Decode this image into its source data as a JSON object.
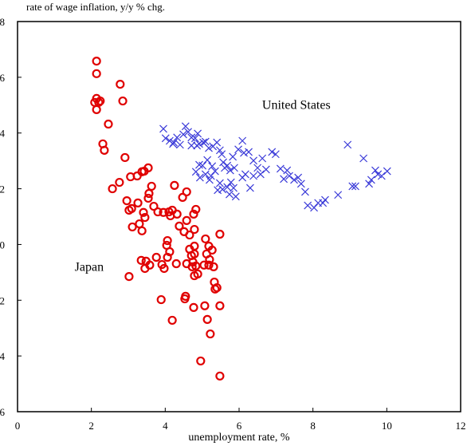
{
  "chart_data": {
    "type": "scatter",
    "title": "rate of wage inflation, y/y % chg.",
    "x_label": "unemployment rate, %",
    "xlim": [
      0,
      12
    ],
    "xticks": [
      0,
      2,
      4,
      6,
      8,
      10,
      12
    ],
    "ylim": [
      -6,
      8
    ],
    "yticks": [
      8,
      6,
      4,
      2,
      0,
      -2,
      -4,
      -6
    ],
    "grid": false,
    "annotations": [
      {
        "text": "United States",
        "x": 7.55,
        "y": 5.01
      },
      {
        "text": "Japan",
        "x": 1.94,
        "y": -0.8
      }
    ],
    "series": [
      {
        "name": "Japan",
        "color": "#e00000",
        "marker": "circle",
        "x": [
          2.14,
          2.14,
          2.14,
          2.2,
          2.09,
          2.14,
          2.78,
          2.24,
          2.46,
          2.31,
          2.35,
          2.85,
          2.91,
          2.57,
          2.76,
          3.06,
          3.24,
          3.43,
          3.54,
          3.37,
          2.96,
          3.09,
          3.02,
          3.26,
          3.41,
          3.11,
          3.3,
          3.37,
          3.45,
          3.56,
          3.63,
          3.54,
          3.69,
          3.8,
          3.95,
          4.1,
          4.14,
          4.19,
          4.25,
          4.32,
          4.38,
          4.47,
          4.58,
          4.51,
          4.58,
          4.66,
          4.77,
          4.83,
          4.66,
          4.79,
          4.06,
          4.04,
          4.12,
          3.76,
          3.91,
          4.06,
          3.58,
          3.48,
          3.97,
          3.35,
          3.45,
          3.02,
          4.58,
          4.71,
          4.75,
          4.79,
          4.79,
          4.73,
          4.83,
          4.88,
          4.79,
          4.3,
          5.09,
          5.18,
          5.12,
          5.27,
          5.2,
          5.05,
          5.18,
          5.31,
          5.48,
          5.33,
          5.35,
          5.4,
          4.55,
          4.53,
          4.77,
          5.07,
          5.48,
          3.89,
          4.19,
          5.14,
          5.22,
          4.96,
          5.48
        ],
        "values": [
          6.58,
          6.13,
          5.24,
          5.1,
          5.1,
          4.84,
          5.75,
          5.15,
          4.32,
          3.61,
          3.38,
          5.15,
          3.12,
          2.0,
          2.23,
          2.43,
          2.46,
          2.63,
          2.75,
          2.61,
          1.57,
          1.29,
          1.23,
          1.49,
          1.15,
          0.63,
          0.74,
          0.49,
          0.97,
          1.83,
          2.09,
          1.66,
          1.37,
          1.17,
          1.15,
          1.17,
          1.03,
          1.23,
          2.12,
          1.09,
          0.66,
          1.69,
          1.89,
          0.46,
          0.86,
          0.34,
          1.09,
          1.26,
          -0.17,
          0.54,
          0.14,
          -0.03,
          -0.26,
          -0.46,
          -0.72,
          -0.46,
          -0.74,
          -0.6,
          -0.86,
          -0.57,
          -0.86,
          -1.15,
          -0.69,
          -0.4,
          -0.63,
          -0.06,
          -0.34,
          -0.8,
          -0.77,
          -1.06,
          -1.12,
          -0.69,
          0.2,
          -0.06,
          -0.34,
          -0.2,
          -0.54,
          -0.74,
          -0.74,
          -0.8,
          0.37,
          -1.35,
          -1.6,
          -1.55,
          -1.86,
          -1.95,
          -2.26,
          -2.2,
          -2.2,
          -1.98,
          -2.72,
          -2.69,
          -3.21,
          -4.18,
          -4.72
        ]
      },
      {
        "name": "United States",
        "color": "#3a3ad8",
        "marker": "x",
        "x": [
          3.95,
          4.01,
          4.12,
          4.23,
          4.32,
          4.4,
          4.49,
          4.55,
          4.62,
          4.71,
          4.81,
          4.86,
          4.92,
          5.03,
          5.09,
          5.18,
          5.29,
          5.4,
          5.48,
          5.53,
          5.57,
          5.61,
          5.68,
          5.76,
          5.87,
          5.98,
          6.09,
          6.13,
          6.26,
          6.39,
          6.5,
          6.58,
          6.63,
          6.73,
          6.89,
          6.99,
          7.12,
          7.21,
          7.3,
          7.36,
          7.49,
          7.6,
          7.68,
          7.79,
          7.86,
          8.03,
          8.14,
          8.27,
          8.33,
          8.68,
          8.94,
          9.07,
          9.15,
          9.37,
          9.52,
          9.58,
          9.69,
          9.76,
          9.86,
          10.01,
          4.83,
          4.92,
          4.94,
          5.01,
          5.09,
          5.2,
          5.27,
          5.35,
          5.42,
          5.48,
          5.55,
          5.68,
          5.74,
          5.85,
          5.91,
          6.09,
          6.17,
          6.3,
          6.39,
          4.88,
          4.71,
          4.21,
          5.14,
          5.24,
          5.78,
          5.83
        ],
        "values": [
          4.15,
          3.81,
          3.72,
          3.66,
          3.84,
          3.58,
          3.95,
          4.24,
          4.04,
          3.55,
          3.81,
          3.55,
          3.61,
          3.66,
          3.69,
          3.46,
          3.52,
          3.66,
          3.38,
          3.24,
          2.95,
          2.75,
          2.83,
          2.66,
          2.75,
          3.41,
          3.72,
          3.29,
          3.32,
          3.01,
          2.75,
          2.52,
          3.09,
          2.69,
          3.32,
          3.24,
          2.72,
          2.35,
          2.66,
          2.46,
          2.32,
          2.4,
          2.18,
          1.89,
          1.4,
          1.32,
          1.49,
          1.49,
          1.6,
          1.78,
          3.58,
          2.09,
          2.09,
          3.09,
          2.18,
          2.32,
          2.66,
          2.52,
          2.46,
          2.63,
          2.61,
          2.86,
          2.4,
          2.83,
          2.52,
          2.32,
          2.81,
          2.63,
          1.95,
          2.2,
          1.98,
          2.06,
          1.8,
          2.03,
          1.72,
          2.4,
          2.52,
          2.03,
          2.46,
          3.98,
          3.84,
          3.61,
          3.03,
          2.46,
          2.23,
          3.15
        ]
      }
    ]
  }
}
